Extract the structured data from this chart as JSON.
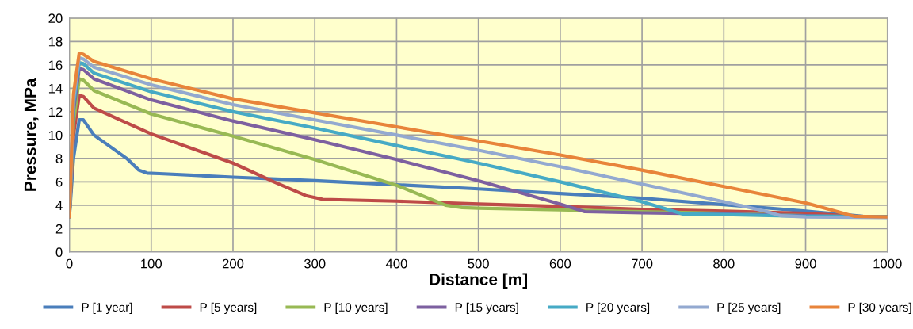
{
  "chart_data": {
    "type": "line",
    "xlabel": "Distance [m]",
    "ylabel": "Pressure, MPa",
    "xlim": [
      0,
      1000
    ],
    "xticks": [
      0,
      100,
      200,
      300,
      400,
      500,
      600,
      700,
      800,
      900,
      1000
    ],
    "ylim": [
      0,
      20
    ],
    "yticks": [
      0,
      2,
      4,
      6,
      8,
      10,
      12,
      14,
      16,
      18,
      20
    ],
    "grid": true,
    "legend": "bottom",
    "marker": "none",
    "line_style": "solid",
    "series": [
      {
        "name": "P [1 year]",
        "color": "#4a7ebb",
        "x": [
          0,
          5,
          12,
          17,
          30,
          50,
          70,
          85,
          95,
          110,
          200,
          300,
          400,
          500,
          600,
          700,
          800,
          900,
          970,
          1000
        ],
        "values": [
          3,
          8,
          11.3,
          11.3,
          10,
          9,
          8,
          7,
          6.75,
          6.7,
          6.4,
          6.1,
          5.75,
          5.4,
          5.0,
          4.6,
          4.05,
          3.5,
          3.05,
          3.0
        ]
      },
      {
        "name": "P [5 years]",
        "color": "#be4b48",
        "x": [
          0,
          5,
          12,
          17,
          30,
          100,
          200,
          250,
          290,
          310,
          400,
          500,
          600,
          700,
          800,
          900,
          960,
          1000
        ],
        "values": [
          3,
          10,
          13.4,
          13.3,
          12.3,
          10.1,
          7.6,
          6,
          4.8,
          4.5,
          4.35,
          4.1,
          3.9,
          3.65,
          3.5,
          3.3,
          3.05,
          3.0
        ]
      },
      {
        "name": "P [10 years]",
        "color": "#98b954",
        "x": [
          0,
          5,
          12,
          17,
          30,
          100,
          200,
          300,
          400,
          460,
          480,
          500,
          600,
          700,
          800,
          900,
          1000
        ],
        "values": [
          3,
          11,
          14.8,
          14.7,
          13.8,
          11.8,
          9.9,
          7.9,
          5.7,
          4.0,
          3.8,
          3.75,
          3.6,
          3.45,
          3.3,
          3.1,
          3.0
        ]
      },
      {
        "name": "P [15 years]",
        "color": "#7d60a0",
        "x": [
          0,
          5,
          12,
          17,
          30,
          100,
          200,
          300,
          400,
          500,
          600,
          630,
          700,
          800,
          900,
          1000
        ],
        "values": [
          3,
          12,
          15.7,
          15.6,
          14.8,
          13.0,
          11.2,
          9.6,
          7.9,
          6.1,
          4.1,
          3.45,
          3.35,
          3.25,
          3.1,
          3.0
        ]
      },
      {
        "name": "P [20 years]",
        "color": "#46aac5",
        "x": [
          0,
          5,
          12,
          17,
          30,
          100,
          200,
          300,
          400,
          500,
          600,
          700,
          750,
          800,
          900,
          1000
        ],
        "values": [
          3,
          12.5,
          16.2,
          16.1,
          15.3,
          13.7,
          12.0,
          10.6,
          9.1,
          7.6,
          6.0,
          4.3,
          3.25,
          3.2,
          3.05,
          3.0
        ]
      },
      {
        "name": "P [25 years]",
        "color": "#93a9d0",
        "x": [
          0,
          5,
          12,
          17,
          30,
          100,
          200,
          300,
          400,
          500,
          600,
          700,
          800,
          850,
          870,
          900,
          1000
        ],
        "values": [
          3,
          13,
          16.6,
          16.5,
          15.8,
          14.3,
          12.6,
          11.3,
          10.0,
          8.7,
          7.3,
          5.8,
          4.3,
          3.5,
          3.1,
          3.0,
          2.95
        ]
      },
      {
        "name": "P [30 years]",
        "color": "#e8843a",
        "x": [
          0,
          5,
          12,
          17,
          30,
          100,
          200,
          300,
          400,
          500,
          600,
          700,
          800,
          900,
          960,
          1000
        ],
        "values": [
          3,
          13.5,
          17.0,
          16.9,
          16.3,
          14.8,
          13.1,
          11.9,
          10.7,
          9.5,
          8.3,
          7.0,
          5.6,
          4.2,
          3.05,
          3.0
        ]
      }
    ]
  }
}
